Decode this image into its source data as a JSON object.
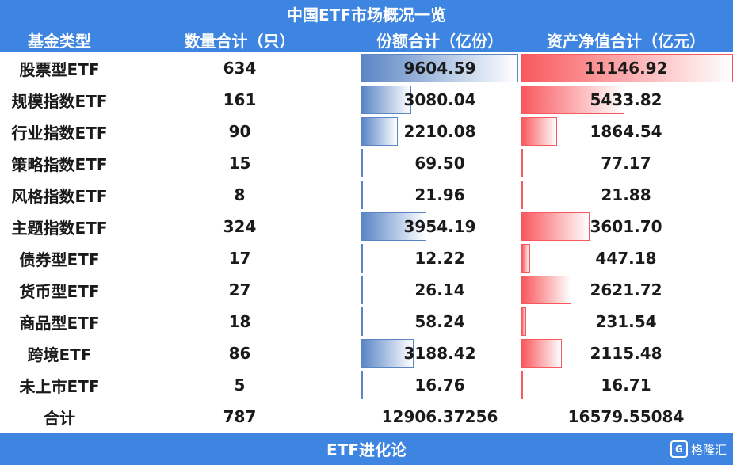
{
  "title": "中国ETF市场概况一览",
  "headers": [
    "基金类型",
    "数量合计（只）",
    "份额合计（亿份）",
    "资产净值合计（亿元）"
  ],
  "rows": [
    {
      "type": "股票型ETF",
      "count": "634",
      "shares": "9604.59",
      "nav": "11146.92",
      "shares_value": 9604.59,
      "nav_value": 11146.92
    },
    {
      "type": "规模指数ETF",
      "count": "161",
      "shares": "3080.04",
      "nav": "5433.82",
      "shares_value": 3080.04,
      "nav_value": 5433.82
    },
    {
      "type": "行业指数ETF",
      "count": "90",
      "shares": "2210.08",
      "nav": "1864.54",
      "shares_value": 2210.08,
      "nav_value": 1864.54
    },
    {
      "type": "策略指数ETF",
      "count": "15",
      "shares": "69.50",
      "nav": "77.17",
      "shares_value": 69.5,
      "nav_value": 77.17
    },
    {
      "type": "风格指数ETF",
      "count": "8",
      "shares": "21.96",
      "nav": "21.88",
      "shares_value": 21.96,
      "nav_value": 21.88
    },
    {
      "type": "主题指数ETF",
      "count": "324",
      "shares": "3954.19",
      "nav": "3601.70",
      "shares_value": 3954.19,
      "nav_value": 3601.7
    },
    {
      "type": "债券型ETF",
      "count": "17",
      "shares": "12.22",
      "nav": "447.18",
      "shares_value": 12.22,
      "nav_value": 447.18
    },
    {
      "type": "货币型ETF",
      "count": "27",
      "shares": "26.14",
      "nav": "2621.72",
      "shares_value": 26.14,
      "nav_value": 2621.72
    },
    {
      "type": "商品型ETF",
      "count": "18",
      "shares": "58.24",
      "nav": "231.54",
      "shares_value": 58.24,
      "nav_value": 231.54
    },
    {
      "type": "跨境ETF",
      "count": "86",
      "shares": "3188.42",
      "nav": "2115.48",
      "shares_value": 3188.42,
      "nav_value": 2115.48
    },
    {
      "type": "未上市ETF",
      "count": "5",
      "shares": "16.76",
      "nav": "16.71",
      "shares_value": 16.76,
      "nav_value": 16.71
    }
  ],
  "total": {
    "type": "合计",
    "count": "787",
    "shares": "12906.37256",
    "nav": "16579.55084"
  },
  "footer": "ETF进化论",
  "watermark": "格隆汇",
  "colors": {
    "header_bg": "#3d85e0",
    "bar_blue": "#5b86c6",
    "bar_red": "#f8595e"
  }
}
